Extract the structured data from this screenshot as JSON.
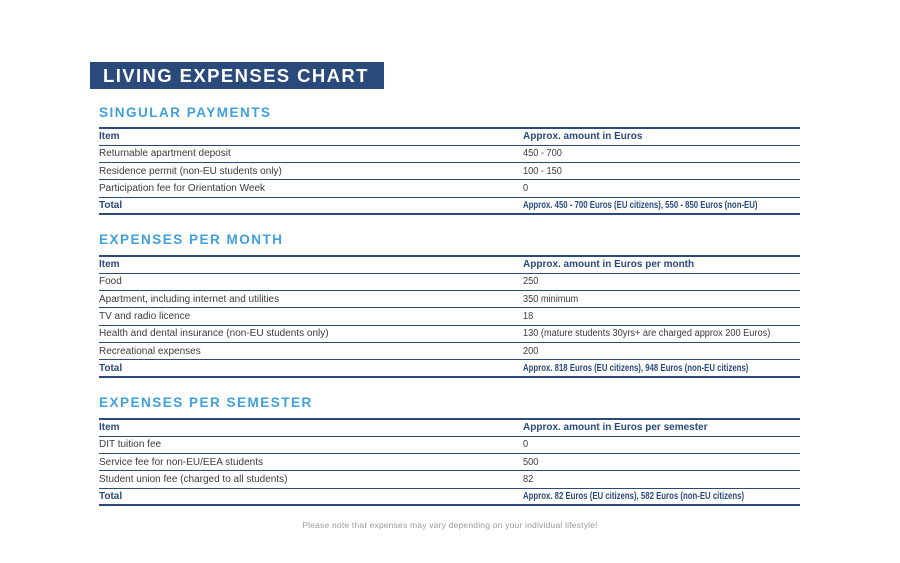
{
  "page": {
    "title": "LIVING EXPENSES CHART",
    "footer_note": "Please note that expenses may vary depending on your individual lifestyle!"
  },
  "colors": {
    "navy": "#2a4a7c",
    "light_blue": "#3fa0dc",
    "body_text": "#3b3b3b",
    "footer_gray": "#9b9b9b"
  },
  "sections": [
    {
      "heading": "SINGULAR PAYMENTS",
      "table": {
        "columns": [
          "Item",
          "Approx. amount in Euros"
        ],
        "rows": [
          [
            "Returnable apartment deposit",
            "450 - 700"
          ],
          [
            "Residence permit (non-EU students only)",
            "100 - 150"
          ],
          [
            "Participation fee for Orientation Week",
            "0"
          ]
        ],
        "total": [
          "Total",
          "Approx. 450 - 700 Euros (EU citizens), 550 - 850 Euros (non-EU)"
        ]
      }
    },
    {
      "heading": "EXPENSES PER MONTH",
      "table": {
        "columns": [
          "Item",
          "Approx. amount in Euros per month"
        ],
        "rows": [
          [
            "Food",
            "250"
          ],
          [
            "Apartment, including internet and utilities",
            "350 minimum"
          ],
          [
            "TV and radio licence",
            "18"
          ],
          [
            "Health and dental insurance (non-EU students only)",
            "130 (mature students 30yrs+ are charged approx 200 Euros)"
          ],
          [
            "Recreational expenses",
            "200"
          ]
        ],
        "total": [
          "Total",
          "Approx. 818 Euros (EU citizens), 948 Euros (non-EU citizens)"
        ]
      }
    },
    {
      "heading": "EXPENSES PER SEMESTER",
      "table": {
        "columns": [
          "Item",
          "Approx. amount in Euros per semester"
        ],
        "rows": [
          [
            "DIT tuition fee",
            "0"
          ],
          [
            "Service fee for non-EU/EEA students",
            "500"
          ],
          [
            "Student union fee (charged to all students)",
            "82"
          ]
        ],
        "total": [
          "Total",
          "Approx. 82 Euros (EU citizens), 582 Euros (non-EU citizens)"
        ]
      }
    }
  ]
}
